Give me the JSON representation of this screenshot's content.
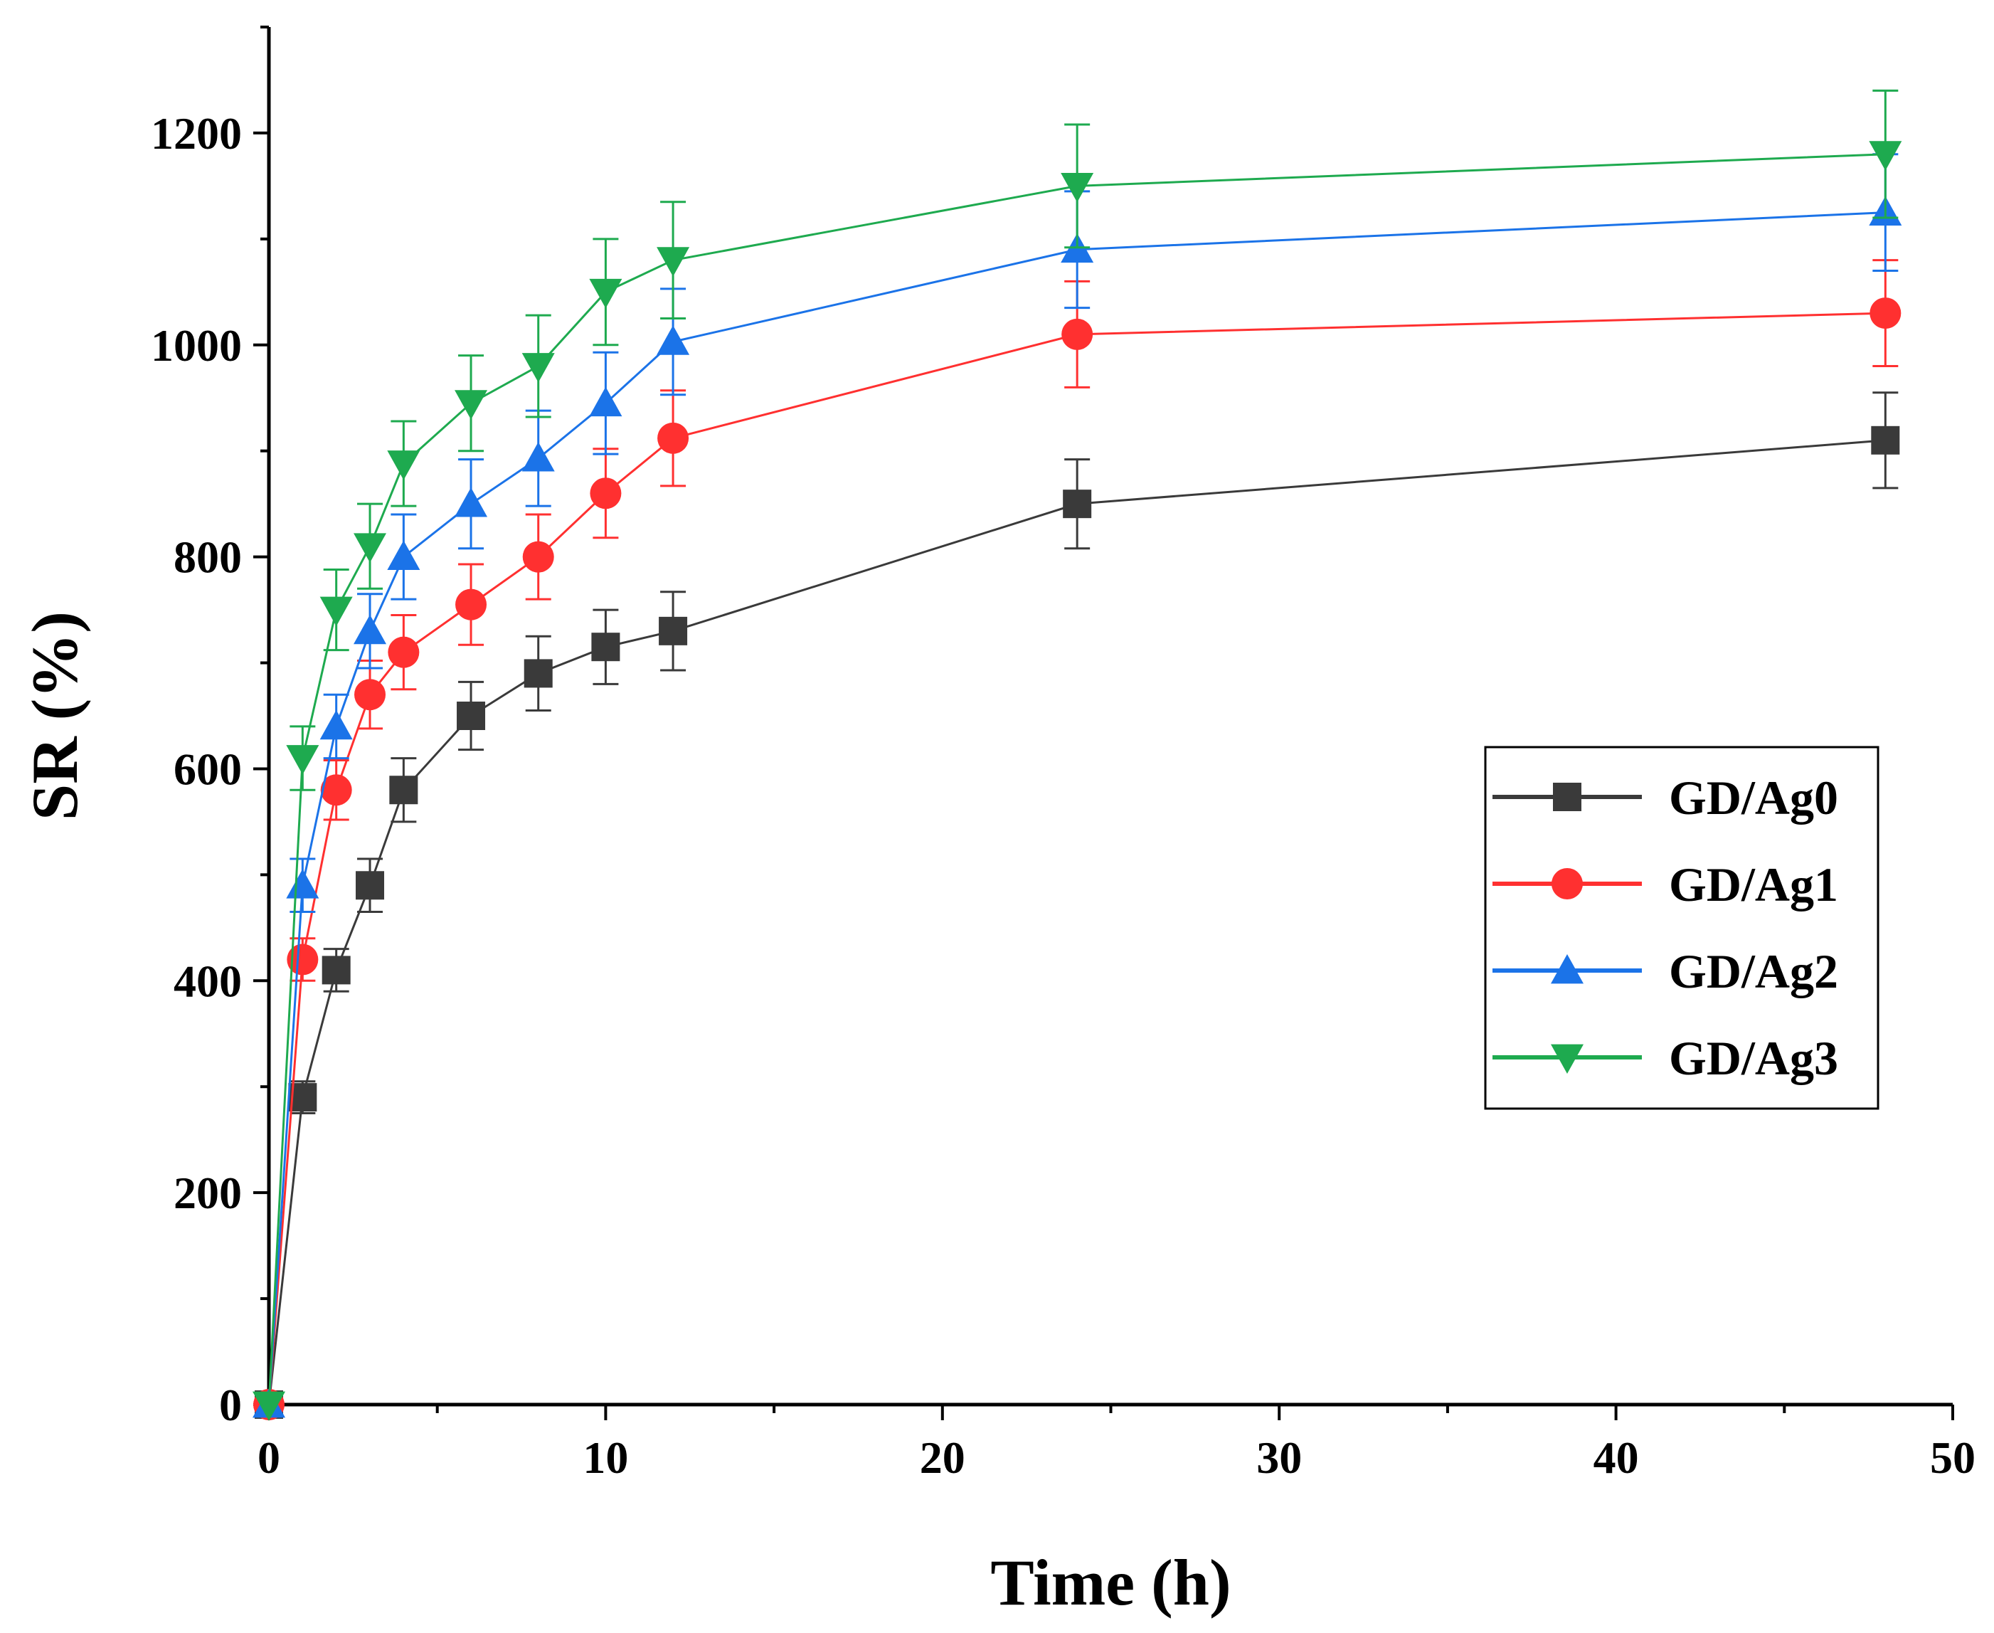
{
  "chart_data": {
    "type": "line",
    "title": "",
    "xlabel": "Time (h)",
    "ylabel": "SR (%)",
    "xlim": [
      0,
      50
    ],
    "ylim": [
      0,
      1300
    ],
    "x_major_ticks": [
      0,
      10,
      20,
      30,
      40,
      50
    ],
    "y_major_ticks": [
      0,
      200,
      400,
      600,
      800,
      1000,
      1200
    ],
    "grid": false,
    "legend_position": "right-middle",
    "x": [
      0,
      1,
      2,
      3,
      4,
      6,
      8,
      10,
      12,
      24,
      48
    ],
    "series": [
      {
        "name": "GD/Ag0",
        "color": "#3a3a3a",
        "marker": "square",
        "values": [
          0,
          290,
          410,
          490,
          580,
          650,
          690,
          715,
          730,
          850,
          910
        ],
        "errors": [
          0,
          15,
          20,
          25,
          30,
          32,
          35,
          35,
          37,
          42,
          45
        ]
      },
      {
        "name": "GD/Ag1",
        "color": "#ff3030",
        "marker": "circle",
        "values": [
          0,
          420,
          580,
          670,
          710,
          755,
          800,
          860,
          912,
          1010,
          1030
        ],
        "errors": [
          0,
          20,
          28,
          32,
          35,
          38,
          40,
          42,
          45,
          50,
          50
        ]
      },
      {
        "name": "GD/Ag2",
        "color": "#1b73e8",
        "marker": "triangle-up",
        "values": [
          0,
          490,
          640,
          730,
          800,
          850,
          893,
          945,
          1003,
          1090,
          1125
        ],
        "errors": [
          0,
          25,
          30,
          35,
          40,
          42,
          45,
          48,
          50,
          55,
          55
        ]
      },
      {
        "name": "GD/Ag3",
        "color": "#1eaa4f",
        "marker": "triangle-down",
        "values": [
          0,
          610,
          750,
          810,
          888,
          945,
          980,
          1050,
          1080,
          1150,
          1180
        ],
        "errors": [
          0,
          30,
          38,
          40,
          40,
          45,
          48,
          50,
          55,
          58,
          60
        ]
      }
    ]
  }
}
